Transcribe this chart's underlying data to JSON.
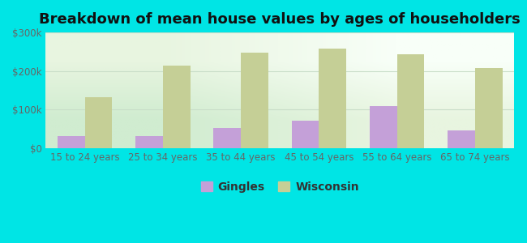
{
  "title": "Breakdown of mean house values by ages of householders",
  "categories": [
    "15 to 24 years",
    "25 to 34 years",
    "35 to 44 years",
    "45 to 54 years",
    "55 to 64 years",
    "65 to 74 years"
  ],
  "gingles": [
    32000,
    32000,
    52000,
    70000,
    108000,
    45000
  ],
  "wisconsin": [
    133000,
    213000,
    248000,
    258000,
    243000,
    208000
  ],
  "gingles_color": "#c4a0d8",
  "wisconsin_color": "#c5cf96",
  "ylim": [
    0,
    300000
  ],
  "yticks": [
    0,
    100000,
    200000,
    300000
  ],
  "ytick_labels": [
    "$0",
    "$100k",
    "$200k",
    "$300k"
  ],
  "legend_gingles": "Gingles",
  "legend_wisconsin": "Wisconsin",
  "plot_bg_top": "#d6f0d0",
  "plot_bg_bottom": "#f0faf0",
  "outer_bg": "#00e5e5",
  "bar_width": 0.35,
  "title_fontsize": 13,
  "tick_fontsize": 8.5,
  "legend_fontsize": 10,
  "grid_color": "#c8ddc8",
  "tick_color": "#666666"
}
